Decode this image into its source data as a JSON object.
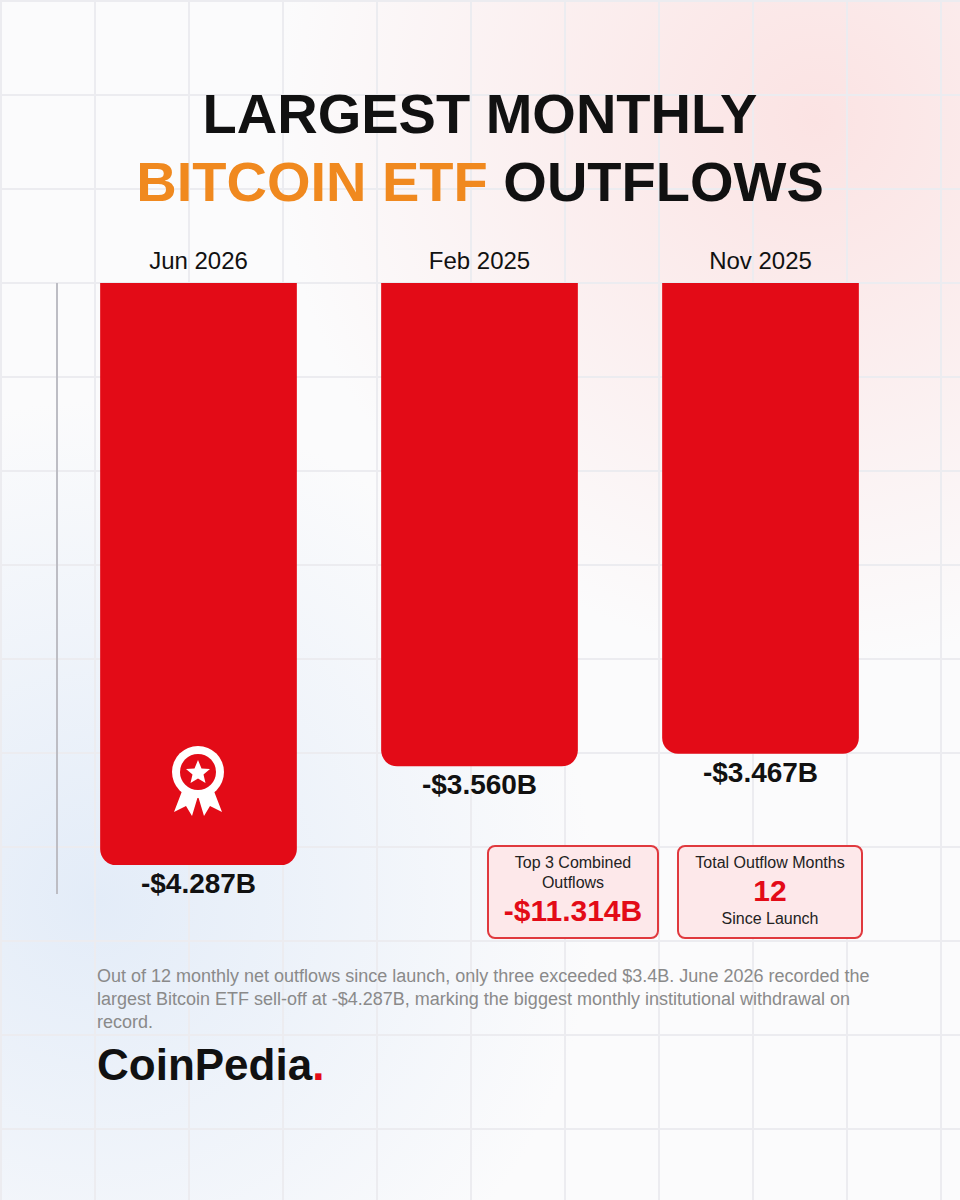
{
  "chart_data": {
    "type": "bar",
    "title": "LARGEST MONTHLY BITCOIN ETF OUTFLOWS",
    "title_highlight": "BITCOIN ETF",
    "categories": [
      "Jun 2026",
      "Feb 2025",
      "Nov 2025"
    ],
    "values": [
      -4.287,
      -3.56,
      -3.467
    ],
    "value_labels": [
      "-$4.287B",
      "-$3.560B",
      "-$3.467B"
    ],
    "color": "#e30b17",
    "ylim": [
      -4.5,
      0
    ],
    "grid": false,
    "data_labels": true,
    "tick_labels": "x",
    "stat_boxes": [
      {
        "label": "Top 3 Combined Outflows",
        "value": -11.314,
        "value_label": "-$11.314B"
      },
      {
        "label": "Total Outflow Months",
        "value": 12,
        "sublabel": "Since Launch"
      }
    ],
    "note": "Out of 12 monthly net outflows since launch, only three exceeded $3.4B. June 2026 recorded the largest Bitcoin ETF sell-off at -$4.287B, marking the biggest monthly institutional withdrawal on record.",
    "source": "CoinPedia."
  }
}
